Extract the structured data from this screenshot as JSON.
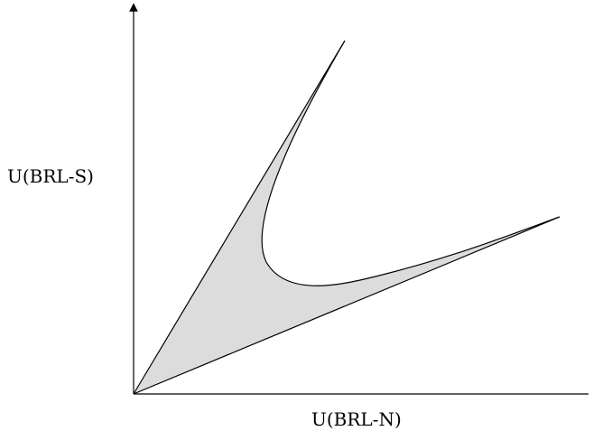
{
  "diagram": {
    "y_axis_label": "U(BRL-S)",
    "x_axis_label": "U(BRL-N)",
    "colors": {
      "region_fill": "#dcdcdc",
      "stroke": "#000000",
      "background": "#ffffff"
    }
  }
}
